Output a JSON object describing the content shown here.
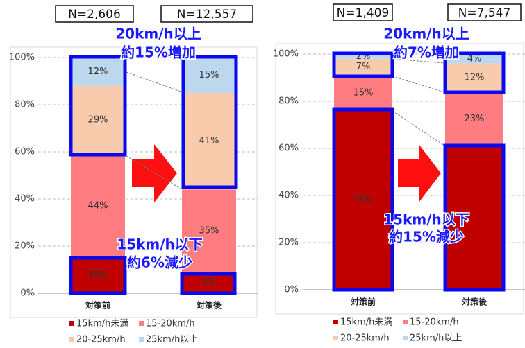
{
  "chart_data": [
    {
      "type": "stacked_bar",
      "categories": [
        "対策前",
        "対策後"
      ],
      "series": [
        {
          "name": "15km/h未満",
          "color": "#c00000",
          "values": [
            15,
            9
          ],
          "value_labels": [
            "15%",
            "9%"
          ]
        },
        {
          "name": "15-20km/h",
          "color": "#ff7c80",
          "values": [
            44,
            35
          ],
          "value_labels": [
            "44%",
            "35%"
          ]
        },
        {
          "name": "20-25km/h",
          "color": "#f8cbad",
          "values": [
            29,
            41
          ],
          "value_labels": [
            "29%",
            "41%"
          ]
        },
        {
          "name": "25km/h以上",
          "color": "#bdd7ee",
          "values": [
            12,
            15
          ],
          "value_labels": [
            "12%",
            "15%"
          ]
        }
      ],
      "ylim": [
        0,
        100
      ],
      "yticks": [
        {
          "value": 0,
          "label": "0%"
        },
        {
          "value": 20,
          "label": "20%"
        },
        {
          "value": 40,
          "label": "40%"
        },
        {
          "value": 60,
          "label": "60%"
        },
        {
          "value": 80,
          "label": "80%"
        },
        {
          "value": 100,
          "label": "100%"
        }
      ],
      "grid": true,
      "n_labels": [
        "N=2,606",
        "N=12,557"
      ],
      "annotations": [
        [
          "20km/h以上",
          "約15%増加"
        ],
        [
          "15km/h以下",
          "約6%減少"
        ]
      ]
    },
    {
      "type": "stacked_bar",
      "categories": [
        "対策前",
        "対策後"
      ],
      "series": [
        {
          "name": "15km/h未満",
          "color": "#c00000",
          "values": [
            76,
            61
          ],
          "value_labels": [
            "76%",
            null
          ]
        },
        {
          "name": "15-20km/h",
          "color": "#ff7c80",
          "values": [
            15,
            23
          ],
          "value_labels": [
            "15%",
            "23%"
          ]
        },
        {
          "name": "20-25km/h",
          "color": "#f8cbad",
          "values": [
            7,
            12
          ],
          "value_labels": [
            "7%",
            "12%"
          ]
        },
        {
          "name": "25km/h以上",
          "color": "#bdd7ee",
          "values": [
            2,
            4
          ],
          "value_labels": [
            "2%",
            "4%"
          ]
        }
      ],
      "ylim": [
        0,
        100
      ],
      "yticks": [
        {
          "value": 0,
          "label": "0%"
        },
        {
          "value": 20,
          "label": "20%"
        },
        {
          "value": 40,
          "label": "40%"
        },
        {
          "value": 60,
          "label": "60%"
        },
        {
          "value": 80,
          "label": "80%"
        },
        {
          "value": 100,
          "label": "100%"
        }
      ],
      "grid": true,
      "n_labels": [
        "N=1,409",
        "N=7,547"
      ],
      "annotations": [
        [
          "20km/h以上",
          "約7%増加"
        ],
        [
          "15km/h以下",
          "約15%減少"
        ]
      ]
    }
  ]
}
